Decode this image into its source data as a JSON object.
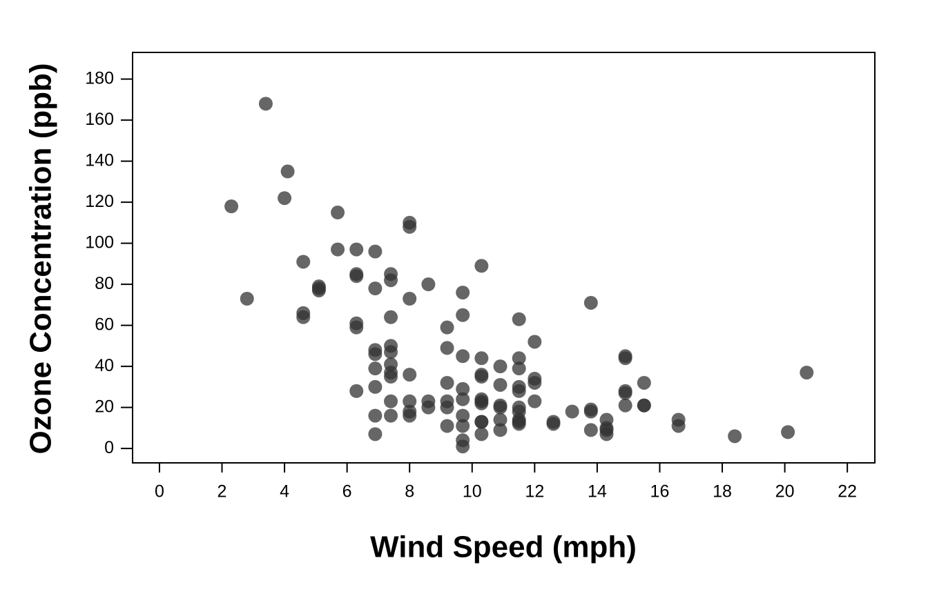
{
  "chart_data": {
    "type": "scatter",
    "x_label": "Wind Speed (mph)",
    "y_label": "Ozone Concentration (ppb)",
    "color": "#333333",
    "xlim": [
      -0.86,
      22.88
    ],
    "ylim": [
      -7,
      193
    ],
    "xticks": [
      0,
      2,
      4,
      6,
      8,
      10,
      12,
      14,
      16,
      18,
      20,
      22
    ],
    "yticks": [
      0,
      20,
      40,
      60,
      80,
      100,
      120,
      140,
      160,
      180
    ],
    "x": [
      7.4,
      8.0,
      12.6,
      11.5,
      14.9,
      8.6,
      13.8,
      20.1,
      6.9,
      9.7,
      9.2,
      10.9,
      13.2,
      11.5,
      12.0,
      18.4,
      11.5,
      9.7,
      9.7,
      16.6,
      9.7,
      12.0,
      12.0,
      14.9,
      5.7,
      7.4,
      9.7,
      13.8,
      11.5,
      8.0,
      14.9,
      20.7,
      9.2,
      11.5,
      10.3,
      4.1,
      9.2,
      9.2,
      4.6,
      10.9,
      5.1,
      6.3,
      5.7,
      7.4,
      14.3,
      14.9,
      14.3,
      6.9,
      10.3,
      6.3,
      5.1,
      11.5,
      6.9,
      8.6,
      8.0,
      8.6,
      12.0,
      7.4,
      7.4,
      7.4,
      9.2,
      6.9,
      13.8,
      7.4,
      6.9,
      7.4,
      4.6,
      4.0,
      10.3,
      8.0,
      11.5,
      11.5,
      9.7,
      10.3,
      6.3,
      7.4,
      10.9,
      10.3,
      15.5,
      14.3,
      9.7,
      3.4,
      8.0,
      9.7,
      2.3,
      6.3,
      6.3,
      6.9,
      5.1,
      2.8,
      4.6,
      7.4,
      15.5,
      10.9,
      10.3,
      10.9,
      9.7,
      14.9,
      15.5,
      6.3,
      10.9,
      11.5,
      6.9,
      13.8,
      10.3,
      10.3,
      8.0,
      12.6,
      9.2,
      10.3,
      10.3,
      16.6,
      6.9,
      14.3,
      8.0,
      11.5
    ],
    "values": [
      41,
      36,
      12,
      18,
      28,
      23,
      19,
      8,
      7,
      16,
      11,
      14,
      18,
      14,
      34,
      6,
      30,
      11,
      1,
      11,
      4,
      32,
      23,
      45,
      115,
      37,
      29,
      71,
      39,
      23,
      21,
      37,
      20,
      12,
      13,
      135,
      49,
      32,
      64,
      40,
      77,
      97,
      97,
      85,
      10,
      27,
      7,
      48,
      35,
      61,
      79,
      63,
      16,
      80,
      108,
      20,
      52,
      82,
      50,
      64,
      59,
      39,
      9,
      16,
      78,
      35,
      66,
      122,
      89,
      110,
      44,
      28,
      65,
      22,
      59,
      23,
      31,
      44,
      21,
      9,
      45,
      168,
      73,
      76,
      118,
      84,
      85,
      96,
      78,
      73,
      91,
      47,
      32,
      20,
      23,
      21,
      24,
      44,
      21,
      28,
      9,
      13,
      46,
      18,
      13,
      24,
      16,
      13,
      23,
      36,
      7,
      14,
      30,
      14,
      18,
      20
    ]
  }
}
